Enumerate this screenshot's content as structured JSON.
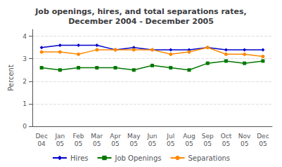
{
  "chart_data": {
    "type": "line",
    "title": "Job openings, hires, and total separations rates,\nDecember 2004 - December 2005",
    "ylabel": "Percent",
    "categories": [
      "Dec\n04",
      "Jan\n05",
      "Feb\n05",
      "Mar\n05",
      "Apr\n05",
      "May\n05",
      "Jun\n05",
      "Jul\n05",
      "Aug\n05",
      "Sep\n05",
      "Oct\n05",
      "Nov\n05",
      "Dec\n05"
    ],
    "series": [
      {
        "name": "Hires",
        "color": "#0000CC",
        "marker": "diamond",
        "values": [
          3.5,
          3.6,
          3.6,
          3.6,
          3.4,
          3.5,
          3.4,
          3.4,
          3.4,
          3.5,
          3.4,
          3.4,
          3.4
        ]
      },
      {
        "name": "Job Openings",
        "color": "#007700",
        "marker": "square",
        "values": [
          2.6,
          2.5,
          2.6,
          2.6,
          2.6,
          2.5,
          2.7,
          2.6,
          2.5,
          2.8,
          2.9,
          2.8,
          2.9
        ]
      },
      {
        "name": "Separations",
        "color": "#FF8800",
        "marker": "circle",
        "values": [
          3.3,
          3.3,
          3.2,
          3.4,
          3.4,
          3.4,
          3.4,
          3.2,
          3.3,
          3.5,
          3.2,
          3.2,
          3.1
        ]
      }
    ],
    "ylim": [
      0,
      4.3
    ],
    "yticks": [
      0,
      1,
      2,
      3,
      4
    ],
    "grid": true,
    "legend": "bottom"
  }
}
